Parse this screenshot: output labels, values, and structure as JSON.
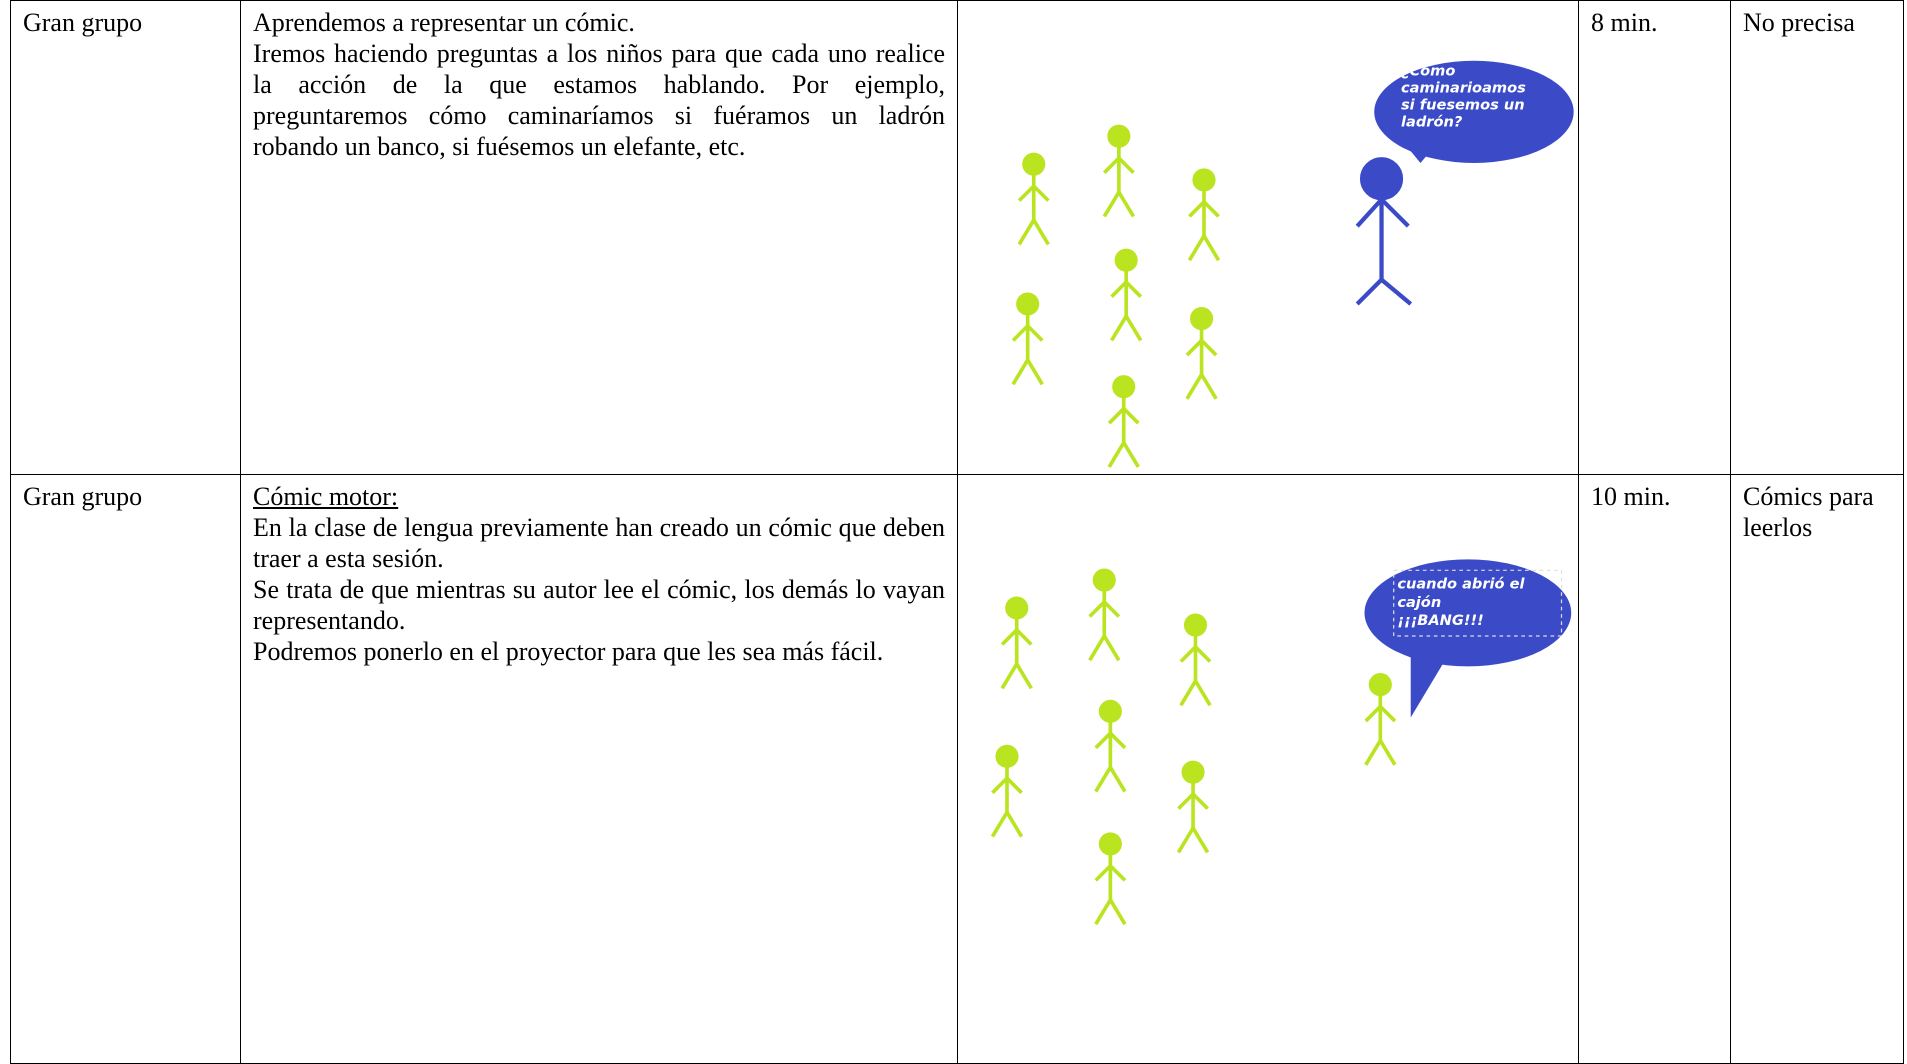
{
  "table": {
    "rows": [
      {
        "grouping": "Gran grupo",
        "activity": [
          "Aprendemos a representar un cómic.",
          "Iremos haciendo preguntas a los niños para que cada uno realice la acción de la que estamos hablando. Por ejemplo, preguntaremos cómo caminaríamos si fuéramos un ladrón robando un banco, si fuésemos un elefante, etc."
        ],
        "bubble": [
          "¿Cómo",
          "caminarioamos",
          "si fuesemos un",
          "ladrón?"
        ],
        "time": "8 min.",
        "materials": "No precisa"
      },
      {
        "grouping": "Gran grupo",
        "heading": "Cómic motor:",
        "activity": [
          "En la clase de lengua previamente han creado un cómic que deben traer a esta sesión.",
          "Se trata de que mientras su autor lee el cómic, los demás lo vayan representando.",
          "Podremos ponerlo en el proyector para que les sea más fácil."
        ],
        "bubble": [
          "cuando abrió el",
          "cajón",
          "¡¡¡BANG!!!"
        ],
        "time": "10 min.",
        "materials": "Cómics para leerlos"
      }
    ]
  }
}
